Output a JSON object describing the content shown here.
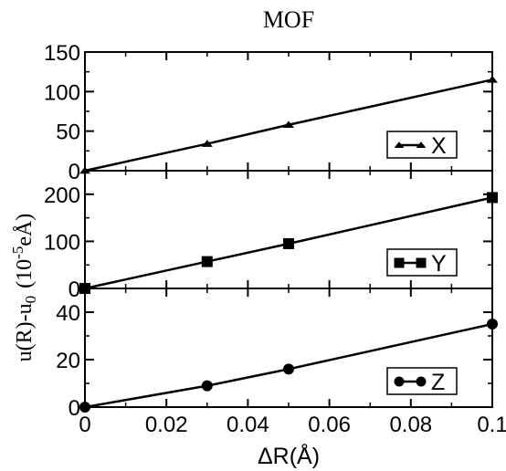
{
  "chart_data": {
    "type": "line",
    "title": "MOF",
    "xlabel": "ΔR(Å)",
    "ylabel_main": "u(R)-u",
    "ylabel_sub": "0",
    "ylabel_unit_open": "(10",
    "ylabel_unit_exp": "-5",
    "ylabel_unit_close": "eÅ)",
    "xlim": [
      0,
      0.1
    ],
    "x_ticks": [
      "0",
      "0.02",
      "0.04",
      "0.06",
      "0.08",
      "0.1"
    ],
    "x_tick_values": [
      0,
      0.02,
      0.04,
      0.06,
      0.08,
      0.1
    ],
    "panels": [
      {
        "name": "X",
        "marker": "triangle",
        "ylim": [
          0,
          150
        ],
        "y_ticks": [
          "0",
          "50",
          "100",
          "150"
        ],
        "y_tick_values": [
          0,
          50,
          100,
          150
        ],
        "x": [
          0,
          0.03,
          0.05,
          0.1
        ],
        "y": [
          0,
          34,
          58,
          115
        ]
      },
      {
        "name": "Y",
        "marker": "square",
        "ylim": [
          0,
          250
        ],
        "y_ticks": [
          "0",
          "100",
          "200"
        ],
        "y_tick_values": [
          0,
          100,
          200
        ],
        "x": [
          0,
          0.03,
          0.05,
          0.1
        ],
        "y": [
          0,
          57,
          95,
          193
        ]
      },
      {
        "name": "Z",
        "marker": "circle",
        "ylim": [
          0,
          50
        ],
        "y_ticks": [
          "0",
          "20",
          "40"
        ],
        "y_tick_values": [
          0,
          20,
          40
        ],
        "x": [
          0,
          0.03,
          0.05,
          0.1
        ],
        "y": [
          0,
          9,
          16,
          35
        ]
      }
    ]
  }
}
